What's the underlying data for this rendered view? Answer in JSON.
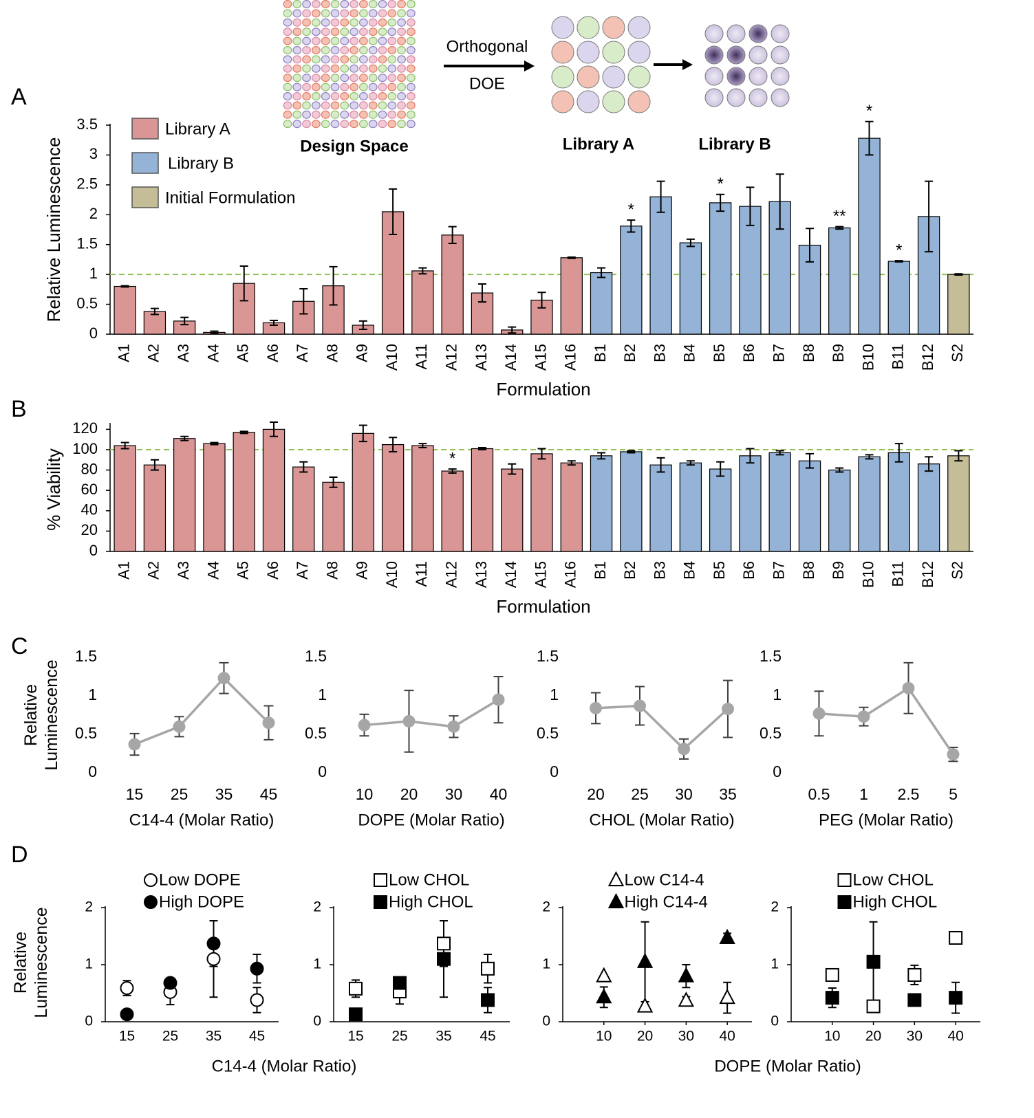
{
  "diagram": {
    "design_space": "Design Space",
    "arrow_top": "Orthogonal",
    "arrow_bottom": "DOE",
    "library_a": "Library A",
    "library_b": "Library B"
  },
  "panel_labels": [
    "A",
    "B",
    "C",
    "D"
  ],
  "chart_data": [
    {
      "type": "bar",
      "x_label": "Formulation",
      "y_label": "Relative Luminescence",
      "categories": [
        "A1",
        "A2",
        "A3",
        "A4",
        "A5",
        "A6",
        "A7",
        "A8",
        "A9",
        "A10",
        "A11",
        "A12",
        "A13",
        "A14",
        "A15",
        "A16",
        "B1",
        "B2",
        "B3",
        "B4",
        "B5",
        "B6",
        "B7",
        "B8",
        "B9",
        "B10",
        "B11",
        "B12",
        "S2"
      ],
      "series": [
        {
          "name": "Library A",
          "color": "#d99694",
          "values": [
            0.8,
            0.38,
            0.22,
            0.03,
            0.85,
            0.19,
            0.55,
            0.81,
            0.15,
            2.05,
            1.06,
            1.66,
            0.69,
            0.07,
            0.57,
            1.28,
            null,
            null,
            null,
            null,
            null,
            null,
            null,
            null,
            null,
            null,
            null,
            null,
            null
          ],
          "errors": [
            0.01,
            0.05,
            0.06,
            0.02,
            0.29,
            0.04,
            0.21,
            0.32,
            0.07,
            0.38,
            0.05,
            0.14,
            0.15,
            0.05,
            0.13,
            0.01,
            null,
            null,
            null,
            null,
            null,
            null,
            null,
            null,
            null,
            null,
            null,
            null,
            null
          ]
        },
        {
          "name": "Library B",
          "color": "#95b3d7",
          "values": [
            null,
            null,
            null,
            null,
            null,
            null,
            null,
            null,
            null,
            null,
            null,
            null,
            null,
            null,
            null,
            null,
            1.03,
            1.81,
            2.3,
            1.53,
            2.2,
            2.14,
            2.22,
            1.49,
            1.78,
            3.28,
            1.22,
            1.97,
            null
          ],
          "errors": [
            null,
            null,
            null,
            null,
            null,
            null,
            null,
            null,
            null,
            null,
            null,
            null,
            null,
            null,
            null,
            null,
            0.08,
            0.1,
            0.26,
            0.06,
            0.14,
            0.32,
            0.46,
            0.28,
            0.02,
            0.28,
            0.01,
            0.59,
            null
          ]
        },
        {
          "name": "Initial Formulation",
          "color": "#c4bd97",
          "values": [
            null,
            null,
            null,
            null,
            null,
            null,
            null,
            null,
            null,
            null,
            null,
            null,
            null,
            null,
            null,
            null,
            null,
            null,
            null,
            null,
            null,
            null,
            null,
            null,
            null,
            null,
            null,
            null,
            1.0
          ],
          "errors": [
            null,
            null,
            null,
            null,
            null,
            null,
            null,
            null,
            null,
            null,
            null,
            null,
            null,
            null,
            null,
            null,
            null,
            null,
            null,
            null,
            null,
            null,
            null,
            null,
            null,
            null,
            null,
            null,
            0.01
          ]
        }
      ],
      "significance": [
        null,
        null,
        null,
        null,
        null,
        null,
        null,
        null,
        null,
        null,
        null,
        null,
        null,
        null,
        null,
        null,
        null,
        "*",
        null,
        null,
        "*",
        null,
        null,
        null,
        "**",
        "*",
        "*",
        null,
        null
      ],
      "reference_line": 1,
      "reference_color": "#8fc156",
      "ylim": [
        0,
        3.5
      ],
      "yticks": [
        0,
        0.5,
        1,
        1.5,
        2,
        2.5,
        3,
        3.5
      ],
      "legend": "upper left"
    },
    {
      "type": "bar",
      "x_label": "Formulation",
      "y_label": "% Viability",
      "categories": [
        "A1",
        "A2",
        "A3",
        "A4",
        "A5",
        "A6",
        "A7",
        "A8",
        "A9",
        "A10",
        "A11",
        "A12",
        "A13",
        "A14",
        "A15",
        "A16",
        "B1",
        "B2",
        "B3",
        "B4",
        "B5",
        "B6",
        "B7",
        "B8",
        "B9",
        "B10",
        "B11",
        "B12",
        "S2"
      ],
      "values": [
        104,
        85,
        111,
        106,
        117,
        120,
        83,
        68,
        116,
        105,
        104,
        79,
        101,
        81,
        96,
        87,
        94,
        98,
        85,
        87,
        81,
        94,
        97,
        89,
        80,
        93,
        97,
        86,
        94
      ],
      "errors": [
        3,
        5,
        2,
        1,
        1,
        7,
        5,
        5,
        8,
        7,
        2,
        2,
        1,
        5,
        5,
        2,
        3,
        1,
        7,
        2,
        7,
        7,
        2,
        7,
        2,
        2,
        9,
        7,
        5
      ],
      "colors": [
        "#d99694",
        "#d99694",
        "#d99694",
        "#d99694",
        "#d99694",
        "#d99694",
        "#d99694",
        "#d99694",
        "#d99694",
        "#d99694",
        "#d99694",
        "#d99694",
        "#d99694",
        "#d99694",
        "#d99694",
        "#d99694",
        "#95b3d7",
        "#95b3d7",
        "#95b3d7",
        "#95b3d7",
        "#95b3d7",
        "#95b3d7",
        "#95b3d7",
        "#95b3d7",
        "#95b3d7",
        "#95b3d7",
        "#95b3d7",
        "#95b3d7",
        "#c4bd97"
      ],
      "significance": [
        null,
        null,
        null,
        null,
        null,
        null,
        null,
        null,
        null,
        null,
        null,
        "*",
        null,
        null,
        null,
        null,
        null,
        null,
        null,
        null,
        null,
        null,
        null,
        null,
        null,
        null,
        null,
        null,
        null
      ],
      "reference_line": 100,
      "reference_color": "#8fc156",
      "ylim": [
        0,
        125
      ],
      "yticks": [
        0,
        20,
        40,
        60,
        80,
        100,
        120
      ]
    },
    {
      "type": "line",
      "x_label": "C14-4 (Molar Ratio)",
      "y_label": "Relative Luminescence",
      "color": "#a6a6a6",
      "categories": [
        "15",
        "25",
        "35",
        "45"
      ],
      "values": [
        0.37,
        0.6,
        1.23,
        0.65
      ],
      "errors": [
        0.14,
        0.13,
        0.2,
        0.22
      ],
      "ylim": [
        0,
        1.5
      ],
      "yticks": [
        0,
        0.5,
        1,
        1.5
      ]
    },
    {
      "type": "line",
      "x_label": "DOPE (Molar Ratio)",
      "color": "#a6a6a6",
      "categories": [
        "10",
        "20",
        "30",
        "40"
      ],
      "values": [
        0.62,
        0.67,
        0.6,
        0.95
      ],
      "errors": [
        0.14,
        0.4,
        0.14,
        0.3
      ],
      "ylim": [
        0,
        1.5
      ],
      "yticks": [
        0,
        0.5,
        1,
        1.5
      ]
    },
    {
      "type": "line",
      "x_label": "CHOL (Molar Ratio)",
      "color": "#a6a6a6",
      "categories": [
        "20",
        "25",
        "30",
        "35"
      ],
      "values": [
        0.84,
        0.87,
        0.31,
        0.83
      ],
      "errors": [
        0.2,
        0.25,
        0.13,
        0.37
      ],
      "ylim": [
        0,
        1.5
      ],
      "yticks": [
        0,
        0.5,
        1,
        1.5
      ]
    },
    {
      "type": "line",
      "x_label": "PEG (Molar Ratio)",
      "color": "#a6a6a6",
      "categories": [
        "0.5",
        "1",
        "2.5",
        "5"
      ],
      "values": [
        0.77,
        0.73,
        1.1,
        0.24
      ],
      "errors": [
        0.29,
        0.12,
        0.33,
        0.09
      ],
      "ylim": [
        0,
        1.5
      ],
      "yticks": [
        0,
        0.5,
        1,
        1.5
      ]
    },
    {
      "type": "scatter",
      "x_label": "C14-4 (Molar Ratio)",
      "y_label": "Relative Luminescence",
      "categories": [
        "15",
        "25",
        "35",
        "45"
      ],
      "series": [
        {
          "name": "Low DOPE",
          "color": "#000000",
          "marker": "circle",
          "filled": false,
          "values": [
            0.59,
            0.52,
            1.1,
            0.38
          ],
          "errors": [
            0.13,
            0.22,
            0.67,
            0.22
          ]
        },
        {
          "name": "High DOPE",
          "color": "#000000",
          "marker": "circle",
          "filled": true,
          "values": [
            0.13,
            0.68,
            1.37,
            0.93
          ],
          "errors": [
            0,
            0,
            0.4,
            0.25
          ]
        }
      ],
      "ylim": [
        0,
        2
      ],
      "yticks": [
        0,
        1,
        2
      ],
      "legend": "top"
    },
    {
      "type": "scatter",
      "categories": [
        "15",
        "25",
        "35",
        "45"
      ],
      "series": [
        {
          "name": "Low CHOL",
          "color": "#000000",
          "marker": "square",
          "filled": false,
          "values": [
            0.58,
            0.53,
            1.37,
            0.93
          ],
          "errors": [
            0.15,
            0.22,
            0.4,
            0.25
          ]
        },
        {
          "name": "High CHOL",
          "color": "#000000",
          "marker": "square",
          "filled": true,
          "values": [
            0.13,
            0.68,
            1.1,
            0.38
          ],
          "errors": [
            0,
            0,
            0.67,
            0.22
          ]
        }
      ],
      "ylim": [
        0,
        2
      ],
      "yticks": [
        0,
        1,
        2
      ],
      "legend": "top"
    },
    {
      "type": "scatter",
      "x_label": "DOPE (Molar Ratio)",
      "x": [
        10,
        20,
        30,
        40
      ],
      "xlim": [
        0,
        46
      ],
      "xticks": [
        10,
        20,
        30,
        40
      ],
      "series": [
        {
          "name": "Low C14-4",
          "color": "#000000",
          "marker": "triangle",
          "filled": false,
          "values": [
            0.8,
            0.27,
            0.37,
            0.42
          ],
          "errors": [
            0,
            0,
            0.07,
            0.27
          ]
        },
        {
          "name": "High C14-4",
          "color": "#000000",
          "marker": "triangle",
          "filled": true,
          "values": [
            0.43,
            1.05,
            0.8,
            1.47
          ],
          "errors": [
            0.18,
            0.7,
            0.2,
            0.08
          ]
        }
      ],
      "ylim": [
        0,
        2
      ],
      "yticks": [
        0,
        1,
        2
      ],
      "legend": "top"
    },
    {
      "type": "scatter",
      "x": [
        10,
        20,
        30,
        40
      ],
      "xlim": [
        0,
        46
      ],
      "xticks": [
        10,
        20,
        30,
        40
      ],
      "series": [
        {
          "name": "Low CHOL",
          "color": "#000000",
          "marker": "square",
          "filled": false,
          "values": [
            0.82,
            0.27,
            0.82,
            1.47
          ],
          "errors": [
            0,
            0,
            0.17,
            0.08
          ]
        },
        {
          "name": "High CHOL",
          "color": "#000000",
          "marker": "square",
          "filled": true,
          "values": [
            0.42,
            1.05,
            0.38,
            0.42
          ],
          "errors": [
            0.17,
            0.7,
            0.07,
            0.27
          ]
        }
      ],
      "ylim": [
        0,
        2
      ],
      "yticks": [
        0,
        1,
        2
      ],
      "legend": "top"
    }
  ]
}
